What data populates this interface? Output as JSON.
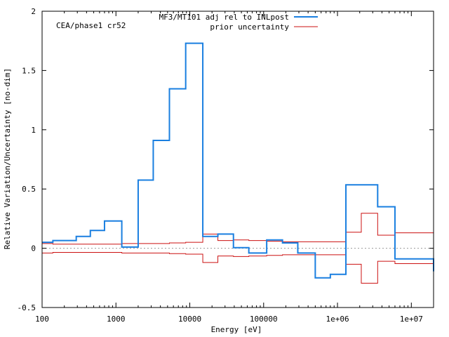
{
  "chart_data": {
    "type": "line",
    "title": "",
    "annotation": "CEA/phase1 cr52",
    "xlabel": "Energy [eV]",
    "ylabel": "Relative Variation/Uncertainty [no-dim]",
    "xscale": "log",
    "xlim": [
      100,
      20000000
    ],
    "ylim": [
      -0.5,
      2
    ],
    "x_ticks": [
      {
        "value": 100,
        "label": "100"
      },
      {
        "value": 1000,
        "label": "1000"
      },
      {
        "value": 10000,
        "label": "10000"
      },
      {
        "value": 100000,
        "label": "100000"
      },
      {
        "value": 1000000,
        "label": "1e+06"
      },
      {
        "value": 10000000,
        "label": "1e+07"
      }
    ],
    "y_ticks": [
      {
        "value": -0.5,
        "label": "-0.5"
      },
      {
        "value": 0,
        "label": "0"
      },
      {
        "value": 0.5,
        "label": "0.5"
      },
      {
        "value": 1,
        "label": "1"
      },
      {
        "value": 1.5,
        "label": "1.5"
      },
      {
        "value": 2,
        "label": "2"
      }
    ],
    "zero_line": true,
    "legend_position": "top-right",
    "series": [
      {
        "name": "MF3/MT101 adj rel to INLpost",
        "color": "#1a7fe0",
        "style": "step",
        "edges": [
          100,
          140,
          290,
          450,
          700,
          1200,
          2000,
          3200,
          5300,
          8800,
          15000,
          24000,
          39000,
          63000,
          110000,
          180000,
          290000,
          500000,
          800000,
          1300000,
          3500000,
          6000000,
          20000000
        ],
        "values": [
          0.05,
          0.065,
          0.1,
          0.15,
          0.23,
          0.01,
          0.575,
          0.91,
          1.345,
          1.73,
          0.1,
          0.12,
          0.005,
          -0.04,
          0.07,
          0.045,
          -0.04,
          -0.25,
          -0.22,
          0.535,
          0.35,
          -0.09,
          -0.195
        ]
      },
      {
        "name": "prior uncertainty",
        "color": "#cc1111",
        "style": "step-band",
        "edges": [
          100,
          140,
          290,
          450,
          700,
          1200,
          2000,
          3200,
          5300,
          8800,
          15000,
          24000,
          39000,
          63000,
          110000,
          180000,
          290000,
          500000,
          800000,
          1300000,
          2100000,
          3500000,
          6000000,
          20000000
        ],
        "values": [
          0.04,
          0.035,
          0.035,
          0.035,
          0.035,
          0.04,
          0.04,
          0.04,
          0.045,
          0.05,
          0.12,
          0.065,
          0.07,
          0.065,
          0.06,
          0.055,
          0.055,
          0.055,
          0.055,
          0.135,
          0.295,
          0.11,
          0.13,
          0.13
        ]
      }
    ]
  }
}
